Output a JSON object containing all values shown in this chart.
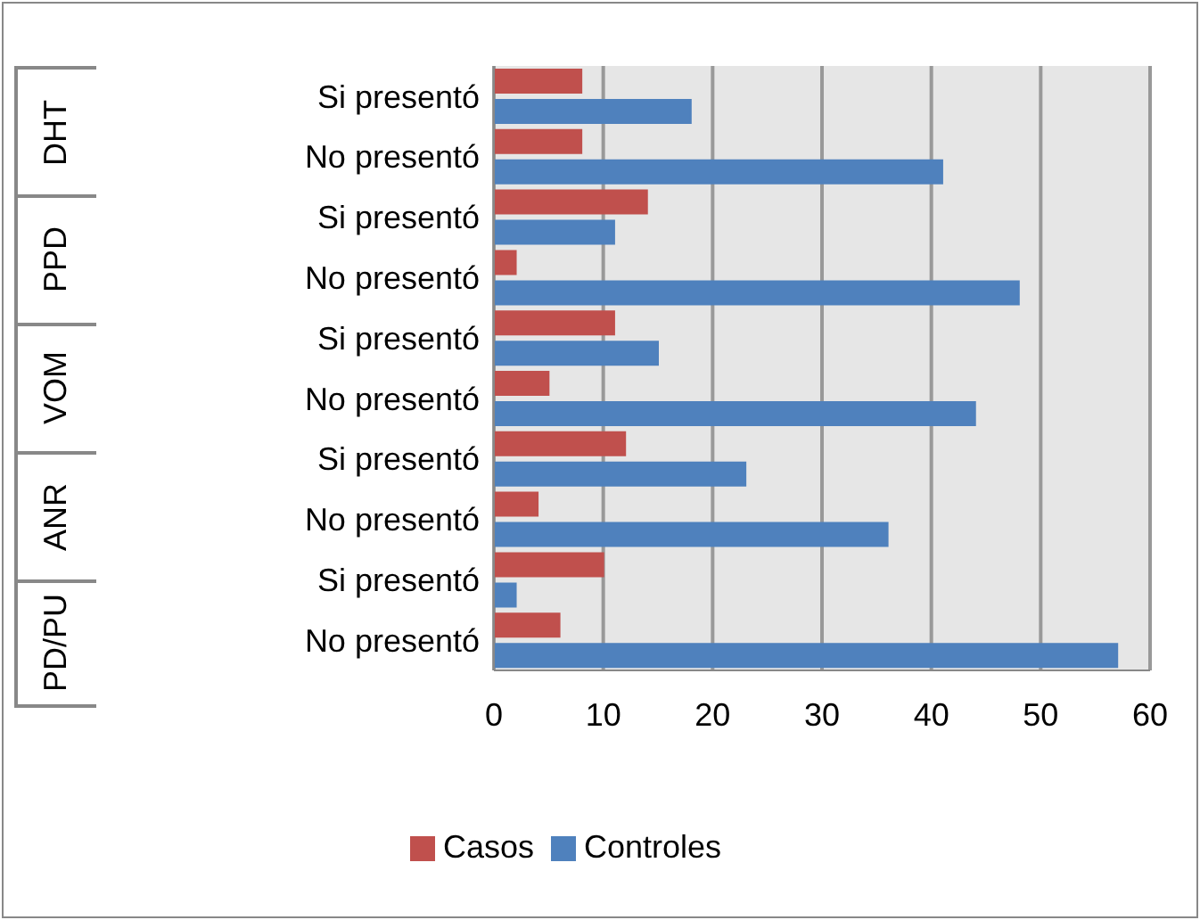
{
  "chart_data": {
    "type": "bar",
    "orientation": "horizontal",
    "categories": [
      "Si presentó",
      "No presentó",
      "Si presentó",
      "No presentó",
      "Si presentó",
      "No presentó",
      "Si presentó",
      "No presentó",
      "Si presentó",
      "No presentó"
    ],
    "series": [
      {
        "name": "Casos",
        "color": "#c0504d",
        "values": [
          8,
          8,
          14,
          2,
          11,
          5,
          12,
          4,
          10,
          6
        ]
      },
      {
        "name": "Controles",
        "color": "#4f81bd",
        "values": [
          18,
          41,
          11,
          48,
          15,
          44,
          23,
          36,
          2,
          57
        ]
      }
    ],
    "annotations": [
      "DHT",
      "PPD",
      "VOM",
      "ANR",
      "PD/PU"
    ],
    "xlim": [
      0,
      60
    ],
    "xticks": [
      0,
      10,
      20,
      30,
      40,
      50,
      60
    ],
    "grid": "x",
    "legend": "bottom"
  }
}
